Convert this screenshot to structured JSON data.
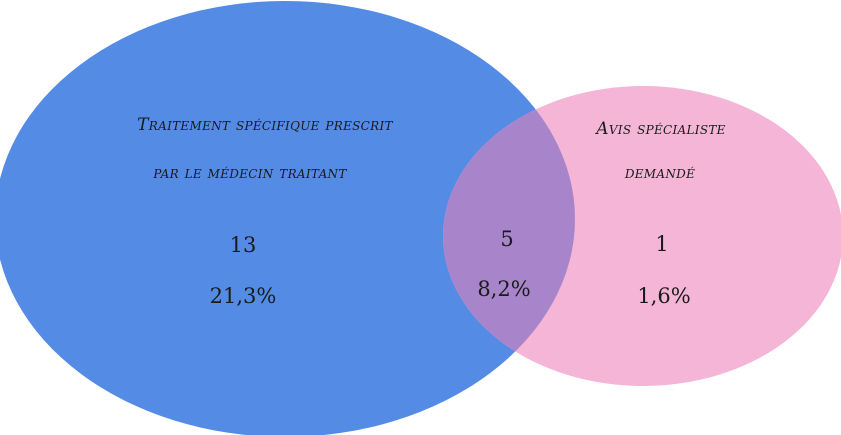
{
  "colors": {
    "left_set": "#548ce5",
    "right_set": "#f4b5d6",
    "overlap": "#a885cb",
    "text": "#1a1a1a",
    "background": "#ffffff"
  },
  "left_set": {
    "label_line1": "Traitement spécifique prescrit",
    "label_line2": "par le médecin traitant",
    "count": "13",
    "percent": "21,3%"
  },
  "intersection": {
    "count": "5",
    "percent": "8,2%"
  },
  "right_set": {
    "label_line1": "Avis spécialiste",
    "label_line2": "demandé",
    "count": "1",
    "percent": "1,6%"
  }
}
